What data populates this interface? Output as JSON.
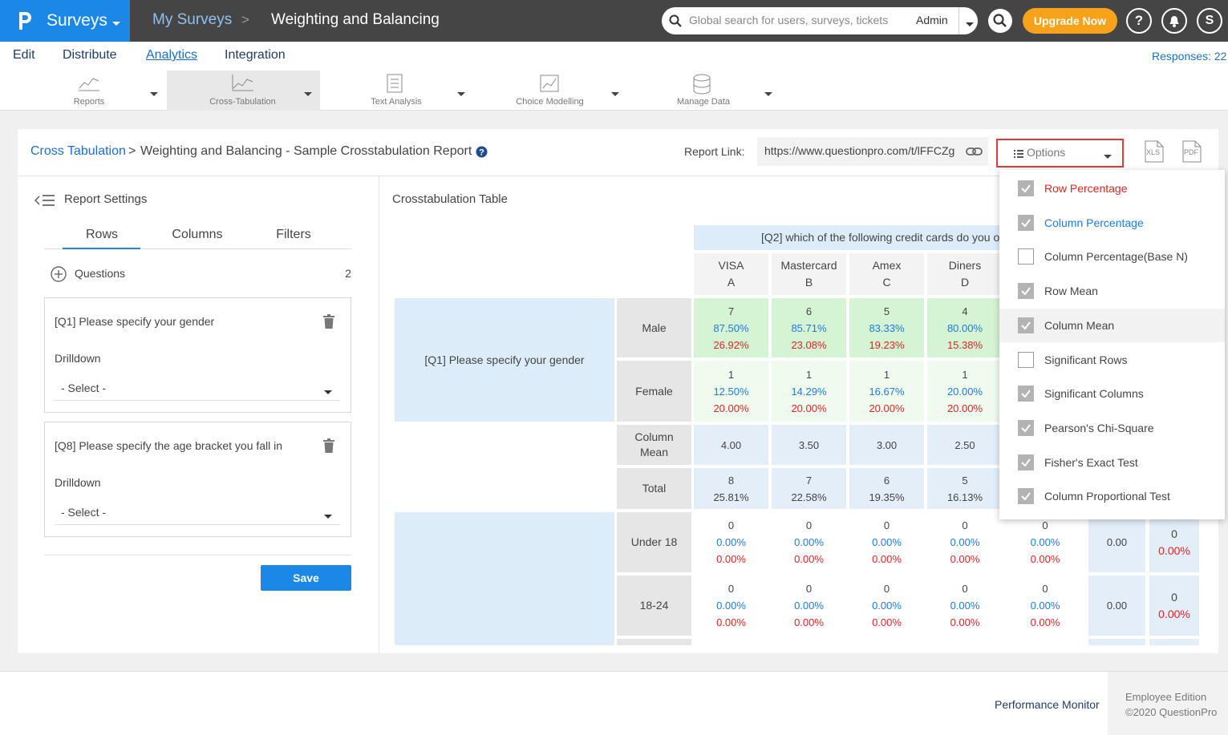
{
  "top_bar": {
    "product": "Surveys",
    "breadcrumb": "My Surveys",
    "separator": ">",
    "survey": "Weighting and Balancing",
    "search_placeholder": "Global search for users, surveys, tickets",
    "search_scope": "Admin",
    "upgrade": "Upgrade Now",
    "help": "?",
    "avatar": "S"
  },
  "nav": {
    "items": [
      "Edit",
      "Distribute",
      "Analytics",
      "Integration"
    ],
    "active": 2,
    "responses": "Responses: 22"
  },
  "toolbar": {
    "items": [
      "Reports",
      "Cross-Tabulation",
      "Text Analysis",
      "Choice Modelling",
      "Manage Data"
    ],
    "active": 1
  },
  "header": {
    "breadcrumb": "Cross Tabulation",
    "separator": ">",
    "title": "Weighting and Balancing - Sample Crosstabulation Report",
    "report_link_label": "Report Link:",
    "report_link": "https://www.questionpro.com/t/lFFCZg",
    "options": "Options",
    "export": [
      "XLS",
      "PDF"
    ]
  },
  "sidebar": {
    "title": "Report Settings",
    "tabs": [
      "Rows",
      "Columns",
      "Filters"
    ],
    "active_tab": 0,
    "questions_label": "Questions",
    "questions_count": 2,
    "cards": [
      {
        "question": "[Q1] Please specify your gender",
        "drilldown": "Drilldown",
        "select": "- Select -"
      },
      {
        "question": "[Q8] Please specify the age bracket you fall in",
        "drilldown": "Drilldown",
        "select": "- Select -"
      }
    ],
    "save": "Save"
  },
  "table": {
    "title": "Crosstabulation Table",
    "column_question": "[Q2] which of the following credit cards do you o",
    "columns": [
      {
        "name": "VISA",
        "letter": "A"
      },
      {
        "name": "Mastercard",
        "letter": "B"
      },
      {
        "name": "Amex",
        "letter": "C"
      },
      {
        "name": "Diners",
        "letter": "D"
      }
    ],
    "groups": [
      {
        "label": "[Q1] Please specify your gender",
        "rows": [
          {
            "label": "Male",
            "cells": [
              [
                "7",
                "87.50%",
                "26.92%"
              ],
              [
                "6",
                "85.71%",
                "23.08%"
              ],
              [
                "5",
                "83.33%",
                "19.23%"
              ],
              [
                "4",
                "80.00%",
                "15.38%"
              ]
            ]
          },
          {
            "label": "Female",
            "cells": [
              [
                "1",
                "12.50%",
                "20.00%"
              ],
              [
                "1",
                "14.29%",
                "20.00%"
              ],
              [
                "1",
                "16.67%",
                "20.00%"
              ],
              [
                "1",
                "20.00%",
                "20.00%"
              ]
            ]
          }
        ]
      },
      {
        "rows": [
          {
            "label": "Column Mean",
            "cells": [
              [
                "4.00"
              ],
              [
                "3.50"
              ],
              [
                "3.00"
              ],
              [
                "2.50"
              ]
            ]
          },
          {
            "label": "Total",
            "cells": [
              [
                "8",
                "25.81%"
              ],
              [
                "7",
                "22.58%"
              ],
              [
                "6",
                "19.35%"
              ],
              [
                "5",
                "16.13%"
              ]
            ]
          }
        ]
      },
      {
        "rows": [
          {
            "label": "Under 18",
            "cells": [
              [
                "0",
                "0.00%",
                "0.00%"
              ],
              [
                "0",
                "0.00%",
                "0.00%"
              ],
              [
                "0",
                "0.00%",
                "0.00%"
              ],
              [
                "0",
                "0.00%",
                "0.00%"
              ],
              [
                "0",
                "0.00%",
                "0.00%"
              ],
              [
                "0.00"
              ],
              [
                "0",
                "0.00%"
              ]
            ]
          },
          {
            "label": "18-24",
            "cells": [
              [
                "0",
                "0.00%",
                "0.00%"
              ],
              [
                "0",
                "0.00%",
                "0.00%"
              ],
              [
                "0",
                "0.00%",
                "0.00%"
              ],
              [
                "0",
                "0.00%",
                "0.00%"
              ],
              [
                "0",
                "0.00%",
                "0.00%"
              ],
              [
                "0.00"
              ],
              [
                "0",
                "0.00%"
              ]
            ]
          }
        ]
      }
    ]
  },
  "options_menu": {
    "items": [
      {
        "label": "Row Percentage",
        "checked": true
      },
      {
        "label": "Column Percentage",
        "checked": true
      },
      {
        "label": "Column Percentage(Base N)",
        "checked": false
      },
      {
        "label": "Row Mean",
        "checked": true
      },
      {
        "label": "Column Mean",
        "checked": true
      },
      {
        "label": "Significant Rows",
        "checked": false
      },
      {
        "label": "Significant Columns",
        "checked": true
      },
      {
        "label": "Pearson's Chi-Square",
        "checked": true
      },
      {
        "label": "Fisher's Exact Test",
        "checked": true
      },
      {
        "label": "Column Proportional Test",
        "checked": true
      }
    ]
  },
  "footer": {
    "link": "Performance Monitor",
    "edition": "Employee Edition",
    "copyright": "©2020 QuestionPro"
  }
}
